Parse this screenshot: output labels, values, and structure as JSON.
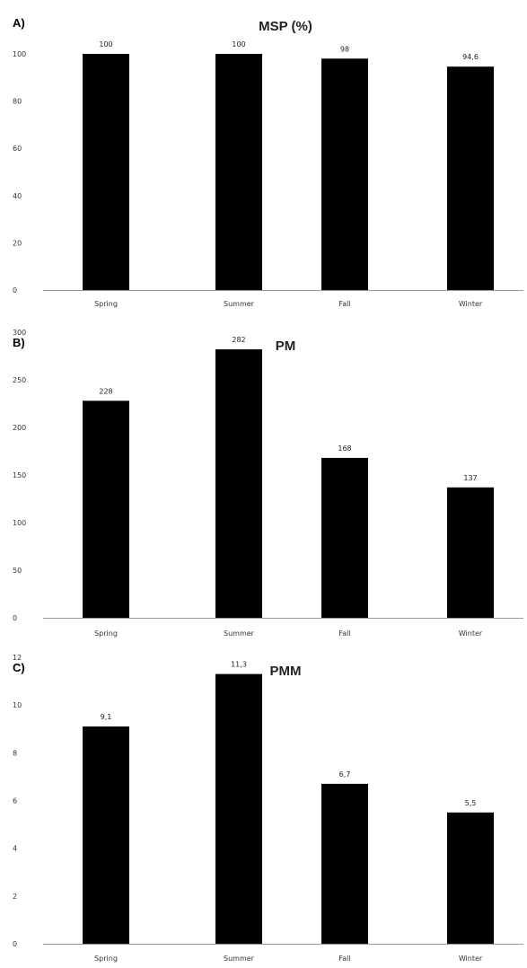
{
  "chart_data": [
    {
      "type": "bar",
      "panel": "A)",
      "title": "MSP (%)",
      "categories": [
        "Spring",
        "Summer",
        "Fall",
        "Winter"
      ],
      "values": [
        100,
        100,
        98,
        94.6
      ],
      "data_labels": [
        "100",
        "100",
        "98",
        "94,6"
      ],
      "yticks": [
        "0",
        "20",
        "40",
        "60",
        "80",
        "100"
      ],
      "ylim": [
        0,
        100
      ],
      "xlabel": "",
      "ylabel": "",
      "grid": false,
      "bar_color": "#000000"
    },
    {
      "type": "bar",
      "panel": "B)",
      "title": "PM",
      "categories": [
        "Spring",
        "Summer",
        "Fall",
        "Winter"
      ],
      "values": [
        228,
        282,
        168,
        137
      ],
      "data_labels": [
        "228",
        "282",
        "168",
        "137"
      ],
      "yticks": [
        "0",
        "50",
        "100",
        "150",
        "200",
        "250",
        "300"
      ],
      "ylim": [
        0,
        300
      ],
      "xlabel": "",
      "ylabel": "",
      "grid": false,
      "bar_color": "#000000"
    },
    {
      "type": "bar",
      "panel": "C)",
      "title": "PMM",
      "categories": [
        "Spring",
        "Summer",
        "Fall",
        "Winter"
      ],
      "values": [
        9.1,
        11.3,
        6.7,
        5.5
      ],
      "data_labels": [
        "9,1",
        "11,3",
        "6,7",
        "5,5"
      ],
      "yticks": [
        "0",
        "2",
        "4",
        "6",
        "8",
        "10",
        "12"
      ],
      "ylim": [
        0,
        12
      ],
      "xlabel": "",
      "ylabel": "",
      "grid": false,
      "bar_color": "#000000"
    }
  ]
}
